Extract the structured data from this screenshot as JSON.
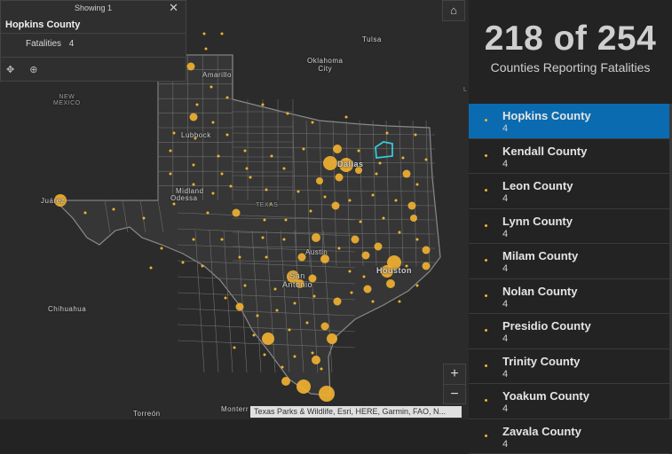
{
  "popup": {
    "showing": "Showing 1",
    "title": "Hopkins County",
    "field_label": "Fatalities",
    "field_value": "4",
    "tools": [
      "pan-icon",
      "zoom-to-icon"
    ]
  },
  "map": {
    "home_icon": "home-icon",
    "zoom_in": "+",
    "zoom_out": "−",
    "attribution": "Texas Parks & Wildlife, Esri, HERE, Garmin, FAO, N...",
    "labels": {
      "tulsa": "Tulsa",
      "okc": "Oklahoma\nCity",
      "new_mexico": "NEW\nMEXICO",
      "dallas": "Dallas",
      "juarez": "Juárez",
      "austin": "Austin",
      "houston": "Houston",
      "san_antonio": "San\nAntonio",
      "chihuahua": "Chihuahua",
      "torreon": "Torreón",
      "monterrey": "Monterr",
      "lubbock": "Lubbock",
      "amarillo": "Amarillo",
      "midland": "Midland",
      "odessa": "Odessa",
      "texas": "TEXAS",
      "edge_l": "L"
    },
    "marker_color": "#f4b231",
    "highlight_color": "#38c8d8"
  },
  "summary": {
    "count": "218 of 254",
    "label": "Counties Reporting Fatalities"
  },
  "list": [
    {
      "name": "Hopkins County",
      "count": "4",
      "selected": true
    },
    {
      "name": "Kendall County",
      "count": "4"
    },
    {
      "name": "Leon County",
      "count": "4"
    },
    {
      "name": "Lynn County",
      "count": "4"
    },
    {
      "name": "Milam County",
      "count": "4"
    },
    {
      "name": "Nolan County",
      "count": "4"
    },
    {
      "name": "Presidio County",
      "count": "4"
    },
    {
      "name": "Trinity County",
      "count": "4"
    },
    {
      "name": "Yoakum County",
      "count": "4"
    },
    {
      "name": "Zavala County",
      "count": "4"
    }
  ]
}
